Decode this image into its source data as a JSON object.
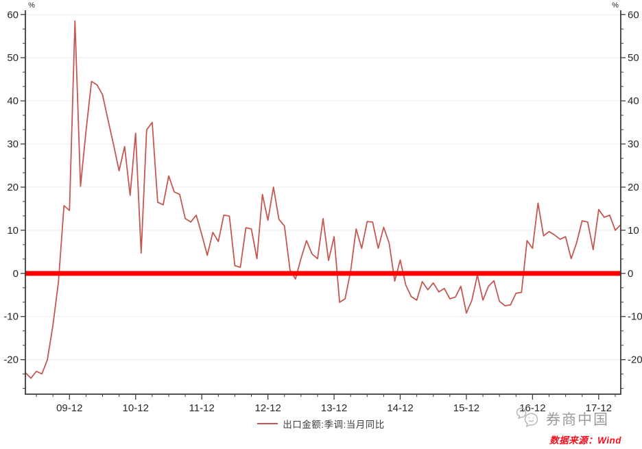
{
  "chart_data": {
    "type": "line",
    "title": "",
    "unit_left": "%",
    "unit_right": "%",
    "grid": true,
    "legend_position": "bottom-center",
    "y_axis": {
      "ticks": [
        60,
        50,
        40,
        30,
        20,
        10,
        0,
        -10,
        -20
      ],
      "min": -28,
      "max": 61
    },
    "x_axis": {
      "tick_labels": [
        "09-12",
        "10-12",
        "11-12",
        "12-12",
        "13-12",
        "14-12",
        "15-12",
        "16-12",
        "17-12"
      ],
      "frequency": "monthly",
      "start": "2009-04",
      "end": "2018-04"
    },
    "zero_line": {
      "value": 0,
      "color": "#fe0000"
    },
    "series": [
      {
        "name": "出口金额:季调:当月同比",
        "color": "#c4574f",
        "values": [
          -23.0,
          -24.3,
          -22.7,
          -23.3,
          -20.0,
          -12.0,
          -2.0,
          15.7,
          14.6,
          58.5,
          20.2,
          33.0,
          44.5,
          43.7,
          41.4,
          35.5,
          29.8,
          23.8,
          29.4,
          18.1,
          32.5,
          4.7,
          33.3,
          35.0,
          16.5,
          15.9,
          22.6,
          18.9,
          18.3,
          12.7,
          11.9,
          13.5,
          9.0,
          4.2,
          9.5,
          7.4,
          13.5,
          13.3,
          1.8,
          1.4,
          10.6,
          10.3,
          3.4,
          18.3,
          12.3,
          20.0,
          12.5,
          11.0,
          0.8,
          -1.3,
          3.5,
          7.6,
          4.5,
          3.4,
          12.7,
          3.0,
          8.5,
          -6.7,
          -5.9,
          0.5,
          10.3,
          5.8,
          12.0,
          11.9,
          5.8,
          10.7,
          7.0,
          -1.8,
          3.1,
          -2.7,
          -5.4,
          -6.2,
          -1.9,
          -3.8,
          -2.2,
          -4.3,
          -3.5,
          -5.9,
          -5.5,
          -3.0,
          -9.2,
          -6.2,
          -0.4,
          -6.2,
          -3.0,
          -1.7,
          -6.5,
          -7.5,
          -7.3,
          -4.6,
          -4.4,
          7.6,
          5.8,
          16.3,
          8.7,
          9.7,
          8.9,
          7.9,
          8.5,
          3.4,
          7.1,
          12.2,
          11.9,
          5.5,
          14.8,
          13.0,
          13.5,
          10.0,
          11.3
        ]
      }
    ]
  },
  "legend": {
    "label": "出口金额:季调:当月同比"
  },
  "footer": {
    "logo_text": "券商中国",
    "source_label": "数据来源：Wind"
  }
}
